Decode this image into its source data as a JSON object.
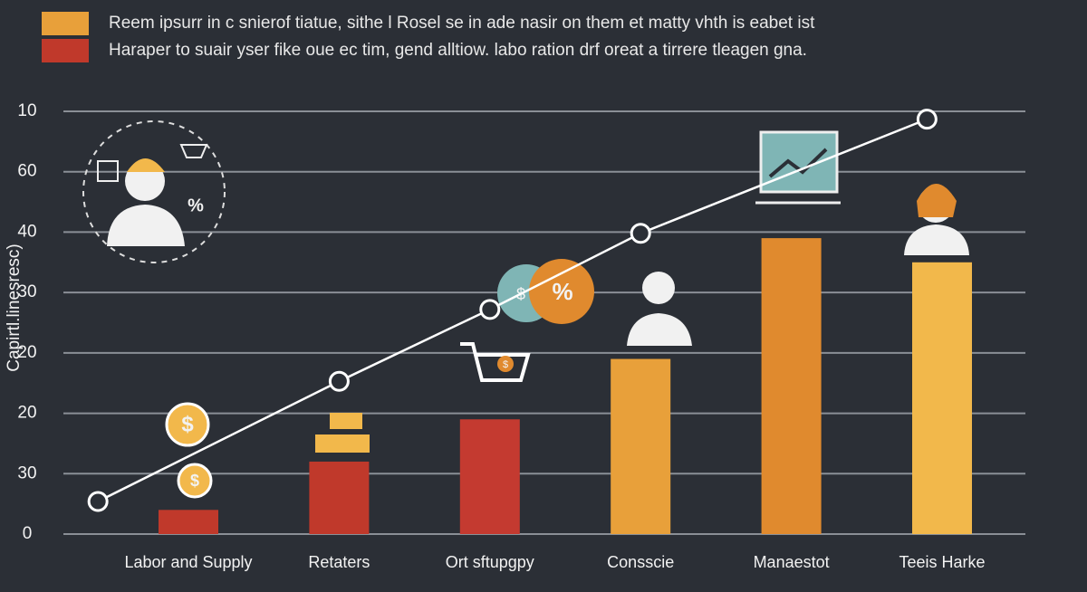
{
  "chart_data": {
    "type": "bar",
    "legend": [
      {
        "color": "#e8a03a",
        "label": "Reem ipsurr in c snierof tiatue, sithe l Rosel se in ade nasir on them et matty vhth is eabet ist"
      },
      {
        "color": "#c0392b",
        "label": "Haraper to suair yser fike oue ec tim, gend alltiow. labo ration drf oreat a tirrere tleagen gna."
      }
    ],
    "ylabel": "Capirtl.linesresc)",
    "categories": [
      "Labor and Supply",
      "Retaters",
      "Ort sftupgpy",
      "Consscie",
      "Manaestot",
      "Teeis Harke"
    ],
    "values": [
      0.4,
      1.2,
      1.9,
      2.9,
      4.9,
      4.5
    ],
    "colors": [
      "#c0392b",
      "#c0392b",
      "#c43a30",
      "#e8a03a",
      "#e08a2e",
      "#f2b84b"
    ],
    "line": {
      "color": "#ffffff",
      "x": [
        -0.6,
        1,
        2,
        3,
        4.9
      ],
      "values": [
        0.54,
        2.53,
        3.72,
        4.98,
        6.87
      ]
    },
    "ylim": [
      0,
      7
    ],
    "yticks": [
      {
        "value": 0,
        "label": "0"
      },
      {
        "value": 1,
        "label": "30"
      },
      {
        "value": 2,
        "label": "20"
      },
      {
        "value": 3,
        "label": "20"
      },
      {
        "value": 4,
        "label": "30"
      },
      {
        "value": 5,
        "label": "40"
      },
      {
        "value": 6,
        "label": "60"
      },
      {
        "value": 7,
        "label": "10"
      }
    ],
    "grid": true,
    "icon_texts": [
      "%",
      "$",
      "%",
      "$",
      "$",
      "$"
    ]
  }
}
